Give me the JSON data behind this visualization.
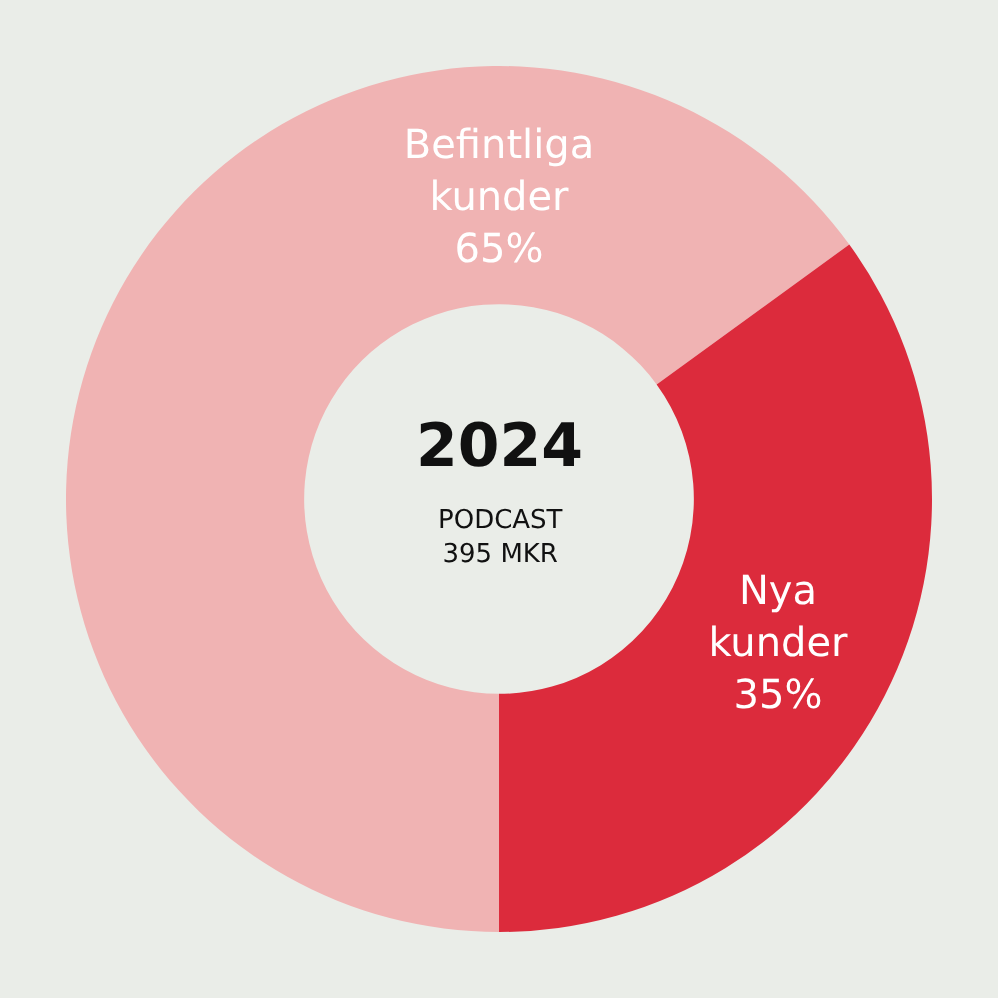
{
  "chart_data": {
    "type": "donut",
    "title": "2024",
    "subtitle": "PODCAST\n395 MKR",
    "categories": [
      "Befintliga kunder",
      "Nya kunder"
    ],
    "values": [
      65,
      35
    ],
    "value_labels": [
      "65%",
      "35%"
    ],
    "colors": [
      "#f0b3b3",
      "#dc2b3c"
    ],
    "legend": false
  }
}
